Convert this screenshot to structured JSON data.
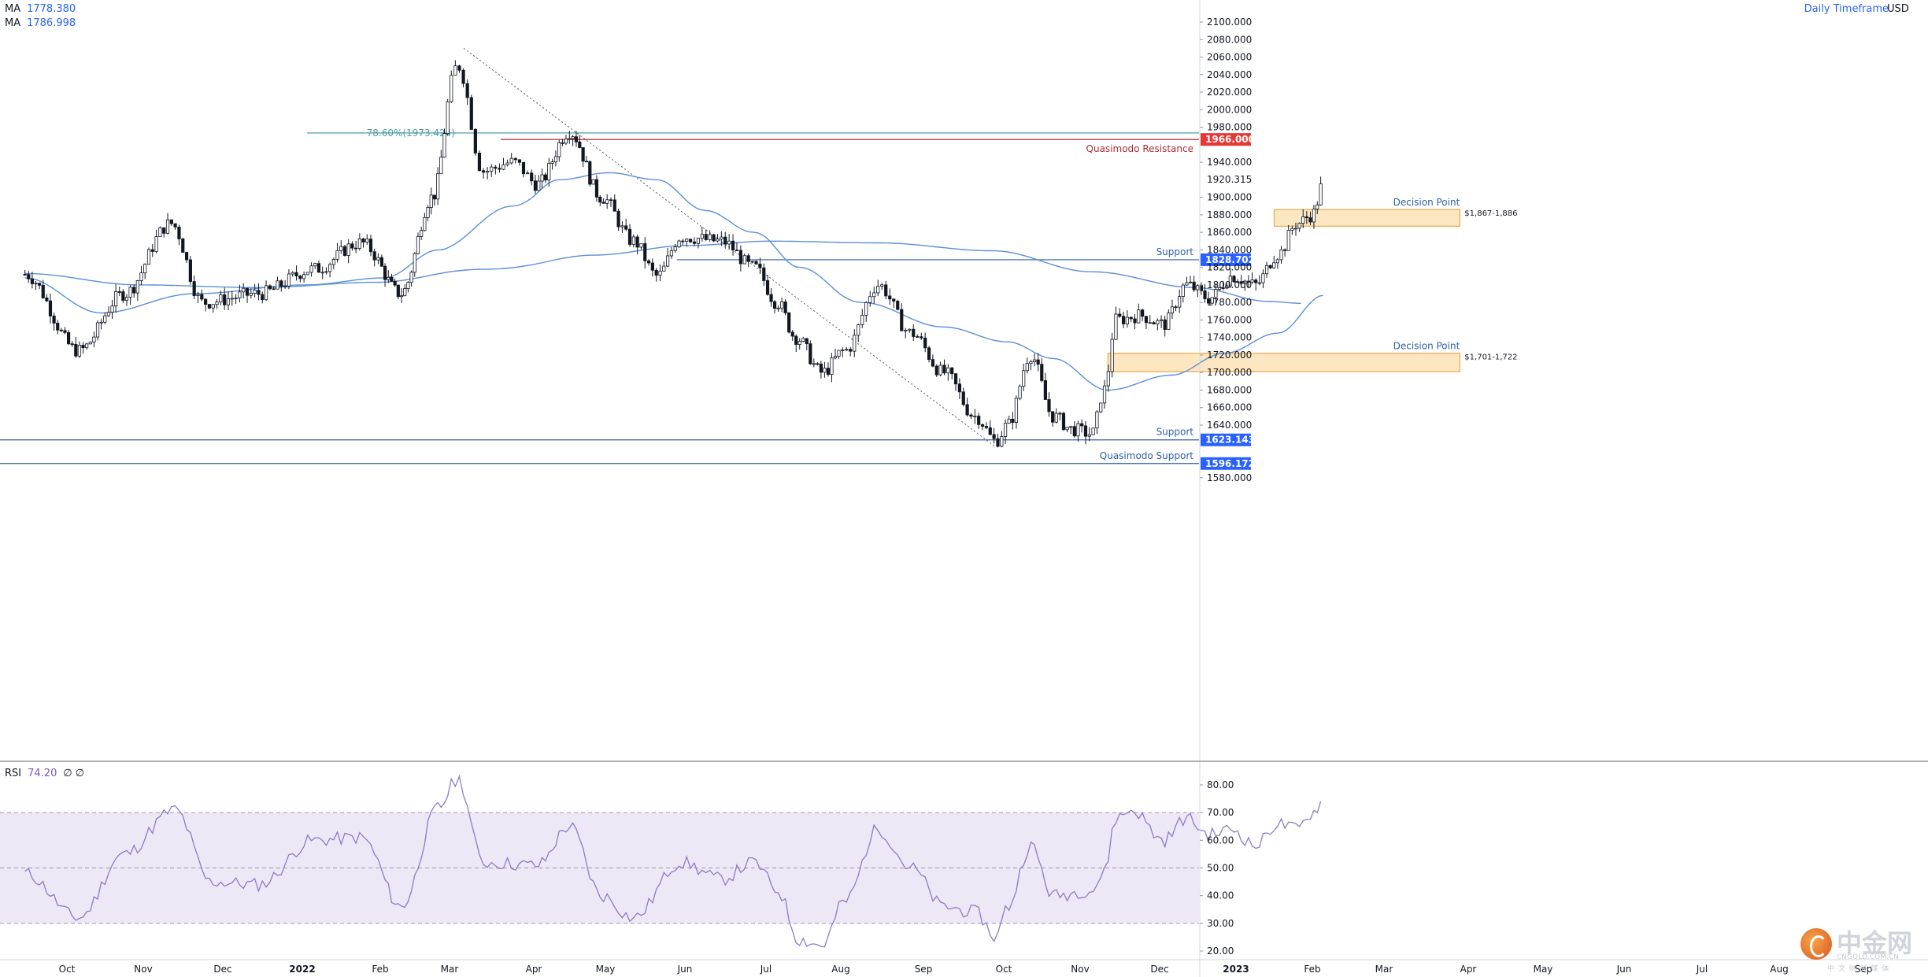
{
  "header": {
    "ma_legend": [
      {
        "label": "MA",
        "value": "1778.380"
      },
      {
        "label": "MA",
        "value": "1786.998"
      }
    ],
    "timeframe": "Daily Timeframe",
    "currency": "USD"
  },
  "rsi_legend": {
    "label": "RSI",
    "value": "74.20",
    "extra": "∅  ∅"
  },
  "watermark": {
    "main": "中金网",
    "sub": "CNGOLD.COM.CN",
    "tag": "中 文 财 经 媒 体"
  },
  "colors": {
    "up": "#ffffff",
    "down": "#131722",
    "ma_line": "#5b8fd8",
    "rsi_line": "#8e7cc3",
    "rsi_band": "#ede7f6",
    "support": "#2f5fa8",
    "resistance": "#b22833",
    "zone_fill": "#fde7c2",
    "zone_border": "#e8a94a"
  },
  "chart_data": {
    "type": "candlestick",
    "title": "",
    "price_axis": {
      "min": 1580,
      "max": 2100,
      "step": 20,
      "ticks": [
        "2100.000",
        "2080.000",
        "2060.000",
        "2040.000",
        "2020.000",
        "2000.000",
        "1980.000",
        "1940.000",
        "1900.000",
        "1880.000",
        "1860.000",
        "1840.000",
        "1820.000",
        "1800.000",
        "1780.000",
        "1760.000",
        "1740.000",
        "1720.000",
        "1700.000",
        "1680.000",
        "1660.000",
        "1640.000",
        "1580.000"
      ]
    },
    "time_axis": {
      "labels": [
        "Oct",
        "Nov",
        "Dec",
        "2022",
        "Feb",
        "Mar",
        "Apr",
        "May",
        "Jun",
        "Jul",
        "Aug",
        "Sep",
        "Oct",
        "Nov",
        "Dec",
        "2023",
        "Feb",
        "Mar",
        "Apr",
        "May",
        "Jun",
        "Jul",
        "Aug",
        "Sep"
      ],
      "bold": [
        "2022",
        "2023"
      ]
    },
    "anchors": [
      {
        "m": 0.0,
        "p": 1812
      },
      {
        "m": 0.7,
        "p": 1725
      },
      {
        "m": 1.3,
        "p": 1790
      },
      {
        "m": 1.9,
        "p": 1870
      },
      {
        "m": 2.3,
        "p": 1780
      },
      {
        "m": 3.0,
        "p": 1790
      },
      {
        "m": 3.7,
        "p": 1818
      },
      {
        "m": 4.3,
        "p": 1848
      },
      {
        "m": 4.85,
        "p": 1790
      },
      {
        "m": 5.3,
        "p": 1900
      },
      {
        "m": 5.65,
        "p": 2050
      },
      {
        "m": 5.95,
        "p": 1930
      },
      {
        "m": 6.3,
        "p": 1940
      },
      {
        "m": 6.6,
        "p": 1915
      },
      {
        "m": 7.05,
        "p": 1975
      },
      {
        "m": 7.5,
        "p": 1900
      },
      {
        "m": 7.9,
        "p": 1850
      },
      {
        "m": 8.2,
        "p": 1810
      },
      {
        "m": 8.5,
        "p": 1855
      },
      {
        "m": 9.0,
        "p": 1850
      },
      {
        "m": 9.4,
        "p": 1820
      },
      {
        "m": 9.7,
        "p": 1780
      },
      {
        "m": 9.95,
        "p": 1740
      },
      {
        "m": 10.3,
        "p": 1700
      },
      {
        "m": 10.6,
        "p": 1725
      },
      {
        "m": 11.0,
        "p": 1800
      },
      {
        "m": 11.4,
        "p": 1745
      },
      {
        "m": 11.8,
        "p": 1700
      },
      {
        "m": 12.2,
        "p": 1650
      },
      {
        "m": 12.45,
        "p": 1622
      },
      {
        "m": 12.6,
        "p": 1640
      },
      {
        "m": 12.9,
        "p": 1720
      },
      {
        "m": 13.2,
        "p": 1650
      },
      {
        "m": 13.45,
        "p": 1635
      },
      {
        "m": 13.7,
        "p": 1630
      },
      {
        "m": 13.85,
        "p": 1680
      },
      {
        "m": 14.0,
        "p": 1760
      },
      {
        "m": 14.3,
        "p": 1765
      },
      {
        "m": 14.6,
        "p": 1755
      },
      {
        "m": 14.9,
        "p": 1800
      },
      {
        "m": 15.2,
        "p": 1785
      },
      {
        "m": 15.5,
        "p": 1810
      },
      {
        "m": 15.8,
        "p": 1800
      },
      {
        "m": 16.1,
        "p": 1835
      },
      {
        "m": 16.35,
        "p": 1870
      },
      {
        "m": 16.55,
        "p": 1880
      },
      {
        "m": 16.7,
        "p": 1915
      }
    ],
    "ma_fast_anchors": [
      {
        "m": 0.0,
        "p": 1808
      },
      {
        "m": 1.0,
        "p": 1768
      },
      {
        "m": 2.2,
        "p": 1790
      },
      {
        "m": 3.6,
        "p": 1800
      },
      {
        "m": 4.6,
        "p": 1808
      },
      {
        "m": 5.4,
        "p": 1840
      },
      {
        "m": 6.3,
        "p": 1890
      },
      {
        "m": 6.9,
        "p": 1920
      },
      {
        "m": 7.6,
        "p": 1928
      },
      {
        "m": 8.2,
        "p": 1920
      },
      {
        "m": 8.8,
        "p": 1885
      },
      {
        "m": 9.4,
        "p": 1860
      },
      {
        "m": 10.0,
        "p": 1820
      },
      {
        "m": 10.8,
        "p": 1780
      },
      {
        "m": 11.8,
        "p": 1752
      },
      {
        "m": 12.6,
        "p": 1735
      },
      {
        "m": 13.2,
        "p": 1716
      },
      {
        "m": 13.9,
        "p": 1680
      },
      {
        "m": 14.7,
        "p": 1697
      },
      {
        "m": 15.4,
        "p": 1722
      },
      {
        "m": 16.1,
        "p": 1745
      },
      {
        "m": 16.7,
        "p": 1788
      }
    ],
    "ma_slow_anchors": [
      {
        "m": 0.0,
        "p": 1813
      },
      {
        "m": 1.5,
        "p": 1800
      },
      {
        "m": 3.0,
        "p": 1797
      },
      {
        "m": 4.5,
        "p": 1803
      },
      {
        "m": 6.0,
        "p": 1818
      },
      {
        "m": 7.4,
        "p": 1834
      },
      {
        "m": 8.6,
        "p": 1845
      },
      {
        "m": 9.6,
        "p": 1850
      },
      {
        "m": 11.0,
        "p": 1848
      },
      {
        "m": 12.4,
        "p": 1839
      },
      {
        "m": 13.7,
        "p": 1815
      },
      {
        "m": 15.0,
        "p": 1797
      },
      {
        "m": 16.0,
        "p": 1781
      },
      {
        "m": 16.4,
        "p": 1779
      }
    ],
    "levels": [
      {
        "price": 1973.424,
        "label": "78.60%(1973.424)",
        "kind": "fib",
        "badge": ""
      },
      {
        "price": 1966.0,
        "label": "Quasimodo Resistance",
        "kind": "resistance",
        "badge": "1966.000"
      },
      {
        "price": 1828.702,
        "label": "Support",
        "kind": "support",
        "badge": "1828.702"
      },
      {
        "price": 1623.143,
        "label": "Support",
        "kind": "support",
        "badge": "1623.143"
      },
      {
        "price": 1596.172,
        "label": "Quasimodo Support",
        "kind": "support",
        "badge": "1596.172"
      }
    ],
    "zones": [
      {
        "label": "Decision Point",
        "range_label": "$1,867-1,886",
        "low": 1867,
        "high": 1886,
        "m_start": 16.05,
        "m_end": 18.45
      },
      {
        "label": "Decision Point",
        "range_label": "$1,701-1,722",
        "low": 1701,
        "high": 1722,
        "m_start": 13.9,
        "m_end": 18.45
      }
    ],
    "last_price": "1920.315",
    "trendline": {
      "m1": 5.72,
      "p1": 2070,
      "m2": 12.45,
      "p2": 1615
    },
    "rsi": {
      "levels": [
        70,
        50,
        30
      ],
      "axis_ticks": [
        "80.00",
        "70.00",
        "60.00",
        "50.00",
        "40.00",
        "30.00",
        "20.00"
      ],
      "min": 15,
      "max": 88,
      "anchors": [
        {
          "m": 0.0,
          "v": 48
        },
        {
          "m": 0.7,
          "v": 32
        },
        {
          "m": 1.3,
          "v": 55
        },
        {
          "m": 1.95,
          "v": 71
        },
        {
          "m": 2.4,
          "v": 45
        },
        {
          "m": 3.0,
          "v": 44
        },
        {
          "m": 3.7,
          "v": 60
        },
        {
          "m": 4.3,
          "v": 61
        },
        {
          "m": 4.85,
          "v": 36
        },
        {
          "m": 5.4,
          "v": 72
        },
        {
          "m": 5.65,
          "v": 82
        },
        {
          "m": 5.95,
          "v": 52
        },
        {
          "m": 6.6,
          "v": 51
        },
        {
          "m": 7.05,
          "v": 65
        },
        {
          "m": 7.5,
          "v": 40
        },
        {
          "m": 7.9,
          "v": 32
        },
        {
          "m": 8.5,
          "v": 52
        },
        {
          "m": 9.0,
          "v": 46
        },
        {
          "m": 9.4,
          "v": 52
        },
        {
          "m": 9.7,
          "v": 42
        },
        {
          "m": 10.0,
          "v": 24
        },
        {
          "m": 10.3,
          "v": 22
        },
        {
          "m": 10.6,
          "v": 38
        },
        {
          "m": 11.0,
          "v": 64
        },
        {
          "m": 11.4,
          "v": 50
        },
        {
          "m": 11.8,
          "v": 36
        },
        {
          "m": 12.2,
          "v": 34
        },
        {
          "m": 12.45,
          "v": 25
        },
        {
          "m": 12.6,
          "v": 36
        },
        {
          "m": 12.9,
          "v": 58
        },
        {
          "m": 13.2,
          "v": 40
        },
        {
          "m": 13.7,
          "v": 42
        },
        {
          "m": 13.85,
          "v": 48
        },
        {
          "m": 14.0,
          "v": 68
        },
        {
          "m": 14.2,
          "v": 71
        },
        {
          "m": 14.6,
          "v": 60
        },
        {
          "m": 14.9,
          "v": 68
        },
        {
          "m": 15.2,
          "v": 62
        },
        {
          "m": 15.5,
          "v": 64
        },
        {
          "m": 15.8,
          "v": 58
        },
        {
          "m": 16.1,
          "v": 66
        },
        {
          "m": 16.35,
          "v": 64
        },
        {
          "m": 16.55,
          "v": 70
        },
        {
          "m": 16.7,
          "v": 74
        }
      ]
    }
  }
}
